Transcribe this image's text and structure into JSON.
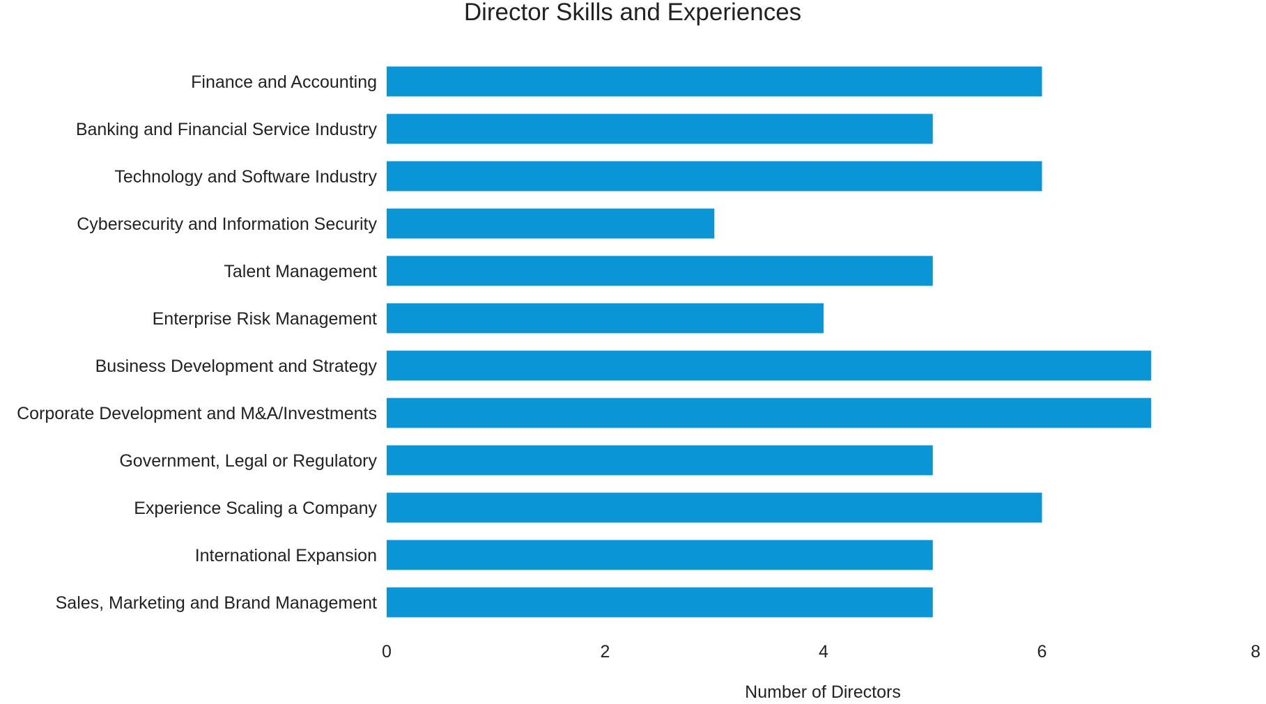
{
  "chart_data": {
    "type": "bar",
    "orientation": "horizontal",
    "title": "Director Skills and Experiences",
    "xlabel": "Number of Directors",
    "ylabel": "",
    "xlim": [
      0,
      8
    ],
    "xticks": [
      0,
      2,
      4,
      6,
      8
    ],
    "grid": false,
    "legend": "none",
    "bar_color": "#0a96d6",
    "categories": [
      "Finance and Accounting",
      "Banking and Financial Service Industry",
      "Technology and Software Industry",
      "Cybersecurity and Information Security",
      "Talent Management",
      "Enterprise Risk Management",
      "Business Development and Strategy",
      "Corporate Development and M&A/Investments",
      "Government, Legal or Regulatory",
      "Experience Scaling a Company",
      "International Expansion",
      "Sales, Marketing and Brand Management"
    ],
    "values": [
      6,
      5,
      6,
      3,
      5,
      4,
      7,
      7,
      5,
      6,
      5,
      5
    ]
  }
}
